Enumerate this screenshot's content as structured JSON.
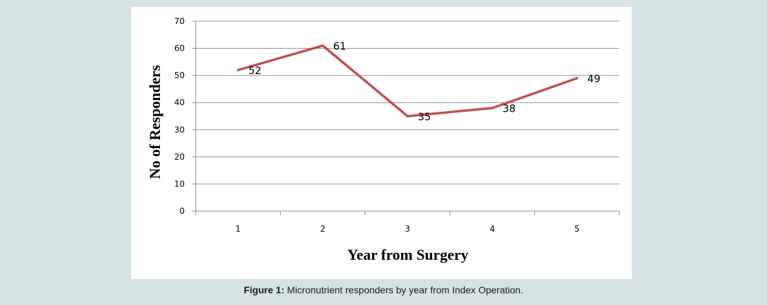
{
  "chart_data": {
    "type": "line",
    "x": [
      1,
      2,
      3,
      4,
      5
    ],
    "series": [
      {
        "values": [
          52,
          61,
          35,
          38,
          49
        ],
        "data_labels": [
          "52",
          "61",
          "35",
          "38",
          "49"
        ],
        "color": "#c0504d"
      }
    ],
    "xlabel": "Year from Surgery",
    "ylabel": "No of Responders",
    "xticks": [
      "1",
      "2",
      "3",
      "4",
      "5"
    ],
    "yticks": [
      "0",
      "10",
      "20",
      "30",
      "40",
      "50",
      "60",
      "70"
    ],
    "ylim": [
      0,
      70
    ],
    "grid": "horizontal",
    "legend": "none",
    "gridline_color": "#8c8c8c",
    "axis_color": "#8c8c8c"
  },
  "caption": {
    "label": "Figure 1:",
    "text": " Micronutrient responders by year from Index Operation."
  }
}
